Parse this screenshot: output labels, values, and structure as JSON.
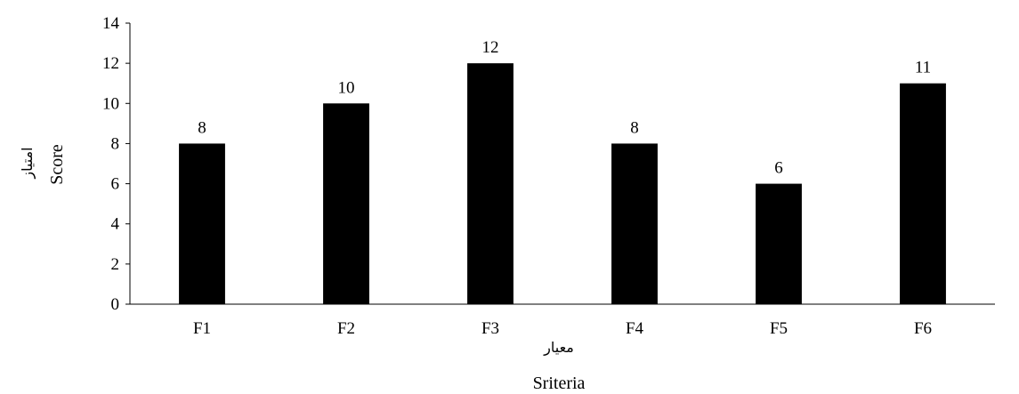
{
  "chart_data": {
    "type": "bar",
    "categories": [
      "F1",
      "F2",
      "F3",
      "F4",
      "F5",
      "F6"
    ],
    "values": [
      8,
      10,
      12,
      8,
      6,
      11
    ],
    "data_labels": [
      "8",
      "10",
      "12",
      "8",
      "6",
      "11"
    ],
    "yticks": [
      0,
      2,
      4,
      6,
      8,
      10,
      12,
      14
    ],
    "ylim": [
      0,
      14
    ],
    "xlabel": "Sriteria",
    "xlabel_secondary": "معیار",
    "ylabel": "Score",
    "ylabel_secondary": "امتیاز",
    "grid": false,
    "legend": "none",
    "bar_color": "#000000"
  }
}
